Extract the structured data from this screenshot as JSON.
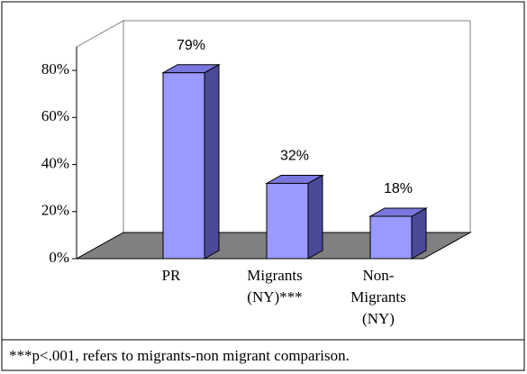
{
  "chart_data": {
    "type": "bar3d",
    "categories": [
      "PR",
      "Migrants (NY)***",
      "Non-Migrants (NY)"
    ],
    "values": [
      79,
      32,
      18
    ],
    "value_labels": [
      "79%",
      "32%",
      "18%"
    ],
    "color": "#9999ff",
    "ylim": [
      0,
      90
    ],
    "yticks": [
      {
        "value": 0,
        "label": "0%"
      },
      {
        "value": 20,
        "label": "20%"
      },
      {
        "value": 40,
        "label": "40%"
      },
      {
        "value": 60,
        "label": "60%"
      },
      {
        "value": 80,
        "label": "80%"
      }
    ],
    "footnote": "***p<.001, refers to migrants-non migrant comparison."
  }
}
